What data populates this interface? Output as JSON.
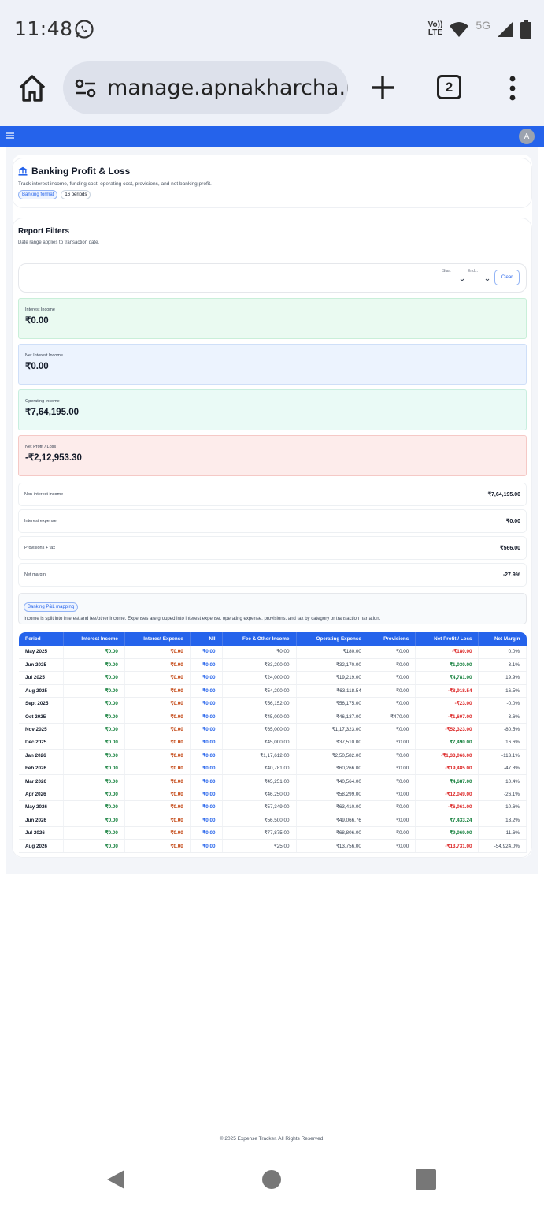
{
  "status_bar": {
    "time": "11:48",
    "volte": [
      "Vo))",
      "LTE"
    ],
    "network": "5G"
  },
  "browser": {
    "url": "manage.apnakharcha.in/",
    "tab_count": "2"
  },
  "app_header": {
    "avatar": "A"
  },
  "page": {
    "title": "Banking Profit & Loss",
    "description": "Track interest income, funding cost, operating cost, provisions, and net banking profit.",
    "chips": [
      "Banking format",
      "16 periods"
    ]
  },
  "filters": {
    "title": "Report Filters",
    "description": "Date range applies to transaction date.",
    "start_label": "Start",
    "end_label": "End...",
    "clear": "Clear"
  },
  "metrics": [
    {
      "label": "Interest Income",
      "value": "₹0.00"
    },
    {
      "label": "Net Interest Income",
      "value": "₹0.00"
    },
    {
      "label": "Operating Income",
      "value": "₹7,64,195.00"
    },
    {
      "label": "Net Profit / Loss",
      "value": "-₹2,12,953.30"
    }
  ],
  "stats": [
    {
      "label": "Non-interest income",
      "value": "₹7,64,195.00"
    },
    {
      "label": "Interest expense",
      "value": "₹0.00"
    },
    {
      "label": "Provisions + tax",
      "value": "₹566.00"
    },
    {
      "label": "Net margin",
      "value": "-27.9%"
    }
  ],
  "mapping": {
    "chip": "Banking P&L mapping",
    "text": "Income is split into interest and fee/other income. Expenses are grouped into interest expense, operating expense, provisions, and tax by category or transaction narration."
  },
  "table": {
    "headers": [
      "Period",
      "Interest Income",
      "Interest Expense",
      "NII",
      "Fee & Other Income",
      "Operating Expense",
      "Provisions",
      "Net Profit / Loss",
      "Net Margin"
    ],
    "rows": [
      [
        "May 2025",
        "₹0.00",
        "₹0.00",
        "₹0.00",
        "₹0.00",
        "₹180.00",
        "₹0.00",
        "-₹180.00",
        "0.0%"
      ],
      [
        "Jun 2025",
        "₹0.00",
        "₹0.00",
        "₹0.00",
        "₹33,200.00",
        "₹32,170.00",
        "₹0.00",
        "₹1,030.00",
        "3.1%"
      ],
      [
        "Jul 2025",
        "₹0.00",
        "₹0.00",
        "₹0.00",
        "₹24,000.00",
        "₹19,219.00",
        "₹0.00",
        "₹4,781.00",
        "19.9%"
      ],
      [
        "Aug 2025",
        "₹0.00",
        "₹0.00",
        "₹0.00",
        "₹54,200.00",
        "₹63,118.54",
        "₹0.00",
        "-₹8,918.54",
        "-16.5%"
      ],
      [
        "Sept 2025",
        "₹0.00",
        "₹0.00",
        "₹0.00",
        "₹56,152.00",
        "₹56,175.00",
        "₹0.00",
        "-₹23.00",
        "-0.0%"
      ],
      [
        "Oct 2025",
        "₹0.00",
        "₹0.00",
        "₹0.00",
        "₹45,000.00",
        "₹46,137.00",
        "₹470.00",
        "-₹1,607.00",
        "-3.6%"
      ],
      [
        "Nov 2025",
        "₹0.00",
        "₹0.00",
        "₹0.00",
        "₹65,000.00",
        "₹1,17,323.00",
        "₹0.00",
        "-₹52,323.00",
        "-80.5%"
      ],
      [
        "Dec 2025",
        "₹0.00",
        "₹0.00",
        "₹0.00",
        "₹45,000.00",
        "₹37,510.00",
        "₹0.00",
        "₹7,490.00",
        "16.6%"
      ],
      [
        "Jan 2026",
        "₹0.00",
        "₹0.00",
        "₹0.00",
        "₹1,17,612.00",
        "₹2,50,582.00",
        "₹0.00",
        "-₹1,33,066.00",
        "-113.1%"
      ],
      [
        "Feb 2026",
        "₹0.00",
        "₹0.00",
        "₹0.00",
        "₹40,781.00",
        "₹60,266.00",
        "₹0.00",
        "-₹19,485.00",
        "-47.8%"
      ],
      [
        "Mar 2026",
        "₹0.00",
        "₹0.00",
        "₹0.00",
        "₹45,251.00",
        "₹40,564.00",
        "₹0.00",
        "₹4,687.00",
        "10.4%"
      ],
      [
        "Apr 2026",
        "₹0.00",
        "₹0.00",
        "₹0.00",
        "₹46,250.00",
        "₹58,299.00",
        "₹0.00",
        "-₹12,049.00",
        "-26.1%"
      ],
      [
        "May 2026",
        "₹0.00",
        "₹0.00",
        "₹0.00",
        "₹57,349.00",
        "₹63,410.00",
        "₹0.00",
        "-₹6,061.00",
        "-10.6%"
      ],
      [
        "Jun 2026",
        "₹0.00",
        "₹0.00",
        "₹0.00",
        "₹56,500.00",
        "₹49,066.76",
        "₹0.00",
        "₹7,433.24",
        "13.2%"
      ],
      [
        "Jul 2026",
        "₹0.00",
        "₹0.00",
        "₹0.00",
        "₹77,875.00",
        "₹68,806.00",
        "₹0.00",
        "₹9,069.00",
        "11.6%"
      ],
      [
        "Aug 2026",
        "₹0.00",
        "₹0.00",
        "₹0.00",
        "₹25.00",
        "₹13,756.00",
        "₹0.00",
        "-₹13,731.00",
        "-54,924.0%"
      ]
    ]
  },
  "footer": {
    "text": "© 2025 Expense Tracker. All Rights Reserved."
  },
  "colors": {
    "brand": "#2563eb",
    "positive": "#15803d",
    "negative": "#dc2626",
    "interest_expense": "#c2410c"
  },
  "icons": [
    "whatsapp-icon",
    "wifi-icon",
    "signal-icon",
    "battery-icon",
    "home-icon",
    "site-settings-icon",
    "plus-icon",
    "more-vert-icon",
    "hamburger-icon",
    "bank-icon",
    "chevron-down-icon",
    "back-icon",
    "home-circle-icon",
    "recents-icon"
  ]
}
